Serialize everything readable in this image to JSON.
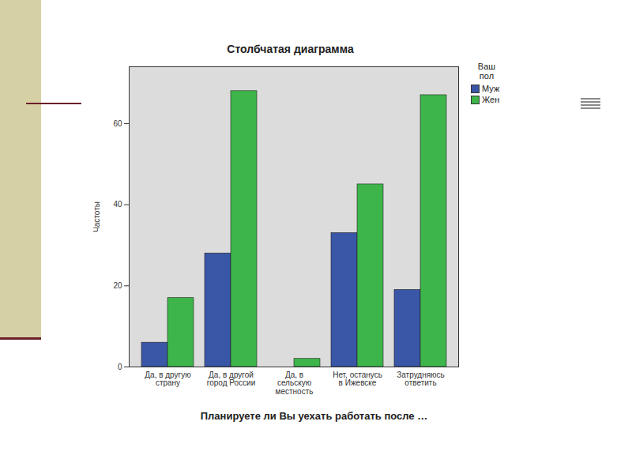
{
  "chart_data": {
    "type": "bar",
    "title": "Столбчатая диаграмма",
    "x_label": "Планируете ли Вы уехать работать после …",
    "y_label": "Частоты",
    "legend_title": "Ваш пол",
    "legend": "top-right",
    "categories": [
      "Да, в другую\nстрану",
      "Да, в другой\nгород России",
      "Да, в\nсельскую\nместность",
      "Нет, останусь\nв Ижевске",
      "Затрудняюсь\nответить"
    ],
    "series": [
      {
        "name": "Муж",
        "color": "#3a56a6",
        "values": [
          6,
          28,
          0,
          33,
          19
        ]
      },
      {
        "name": "Жен",
        "color": "#3db54a",
        "values": [
          17,
          68,
          2,
          45,
          67
        ]
      }
    ],
    "ylim": [
      0,
      74
    ],
    "yticks": [
      0,
      20,
      40,
      60
    ],
    "grid": false
  }
}
